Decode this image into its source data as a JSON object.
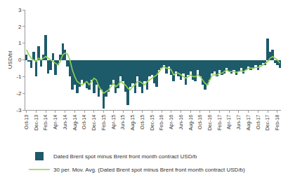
{
  "chart_data": {
    "type": "bar",
    "y_label": "USD/bl",
    "ylim": [
      -3,
      3
    ],
    "yticks": [
      -3,
      -2,
      -1,
      0,
      1,
      2,
      3
    ],
    "grid": false,
    "legend": "bottom",
    "categories": [
      "Oct-13",
      null,
      null,
      null,
      "Dec-13",
      null,
      null,
      null,
      "Feb-14",
      null,
      null,
      null,
      "Apr-14",
      null,
      null,
      null,
      "Jun-14",
      null,
      null,
      null,
      "Aug-14",
      null,
      null,
      null,
      "Oct-14",
      null,
      null,
      null,
      "Dec-14",
      null,
      null,
      null,
      "Feb-15",
      null,
      null,
      null,
      "Apr-15",
      null,
      null,
      null,
      "Jun-15",
      null,
      null,
      null,
      "Aug-15",
      null,
      null,
      null,
      "Oct-15",
      null,
      null,
      null,
      "Dec-15",
      null,
      null,
      null,
      "Feb-16",
      null,
      null,
      null,
      "Apr-16",
      null,
      null,
      null,
      "Jun-16",
      null,
      null,
      null,
      "Aug-16",
      null,
      null,
      null,
      "Oct-16",
      null,
      null,
      null,
      "Dec-16",
      null,
      null,
      null,
      "Feb-17",
      null,
      null,
      null,
      "Apr-17",
      null,
      null,
      null,
      "Jun-17",
      null,
      null,
      null,
      "Aug-17",
      null,
      null,
      null,
      "Oct-17",
      null,
      null,
      null,
      "Dec-17",
      null,
      null,
      null,
      "Feb-18",
      null
    ],
    "series": [
      {
        "name": "Dated Brent spot minus Brent front month contract USD/b",
        "type": "bar",
        "color": "#1d5a6a",
        "values": [
          0.3,
          -0.1,
          -0.5,
          0.5,
          -1.0,
          0.8,
          -0.4,
          0.3,
          1.5,
          -0.8,
          -0.6,
          0.4,
          -0.9,
          -0.3,
          0.3,
          1.0,
          0.6,
          -0.4,
          -1.0,
          -1.8,
          -1.5,
          -2.0,
          -1.6,
          -1.2,
          -1.4,
          -1.7,
          -1.8,
          -1.2,
          -2.0,
          -1.5,
          -2.2,
          -1.8,
          -2.9,
          -2.2,
          -1.9,
          -1.5,
          -1.2,
          -2.0,
          -1.7,
          -1.0,
          -1.3,
          -1.9,
          -2.7,
          -1.6,
          -1.4,
          -2.0,
          -1.0,
          -1.6,
          -2.0,
          -1.3,
          -1.8,
          -1.0,
          -0.9,
          -1.4,
          -1.6,
          -0.6,
          -0.5,
          -0.3,
          -0.8,
          -0.4,
          -0.9,
          -1.3,
          -0.7,
          -1.0,
          -1.2,
          -0.8,
          -1.5,
          -0.9,
          -0.7,
          -1.2,
          -1.3,
          -0.6,
          -1.0,
          -1.5,
          -1.8,
          -1.5,
          -1.2,
          -0.8,
          -0.7,
          -1.0,
          -0.6,
          -0.9,
          -0.8,
          -0.5,
          -0.7,
          -0.8,
          -0.6,
          -0.9,
          -0.7,
          -0.5,
          -0.8,
          -0.6,
          -0.4,
          -0.6,
          -0.5,
          -0.3,
          -0.6,
          -0.3,
          -0.2,
          -0.3,
          1.3,
          0.5,
          0.6,
          -0.2,
          -0.3,
          -0.5
        ]
      },
      {
        "name": "30 per. Mov. Avg. (Dated Brent spot minus Brent front month contract USD/b)",
        "type": "line",
        "color": "#8fd14f",
        "values": [
          0.6,
          0.3,
          0.1,
          0.0,
          -0.1,
          0.1,
          0.0,
          0.1,
          0.2,
          0.1,
          0.0,
          -0.1,
          -0.2,
          -0.3,
          -0.1,
          0.3,
          0.4,
          0.35,
          0.0,
          -0.6,
          -1.0,
          -1.3,
          -1.4,
          -1.5,
          -1.4,
          -1.3,
          -1.5,
          -1.3,
          -1.1,
          -1.2,
          -1.6,
          -1.8,
          -2.0,
          -1.9,
          -1.8,
          -1.6,
          -1.4,
          -1.6,
          -1.5,
          -1.3,
          -1.4,
          -1.5,
          -1.7,
          -1.8,
          -1.6,
          -1.5,
          -1.3,
          -1.3,
          -1.4,
          -1.5,
          -1.3,
          -1.2,
          -1.1,
          -1.0,
          -0.9,
          -0.7,
          -0.5,
          -0.4,
          -0.5,
          -0.5,
          -0.6,
          -0.9,
          -0.8,
          -0.8,
          -0.9,
          -1.0,
          -1.1,
          -1.0,
          -0.9,
          -1.0,
          -1.0,
          -0.9,
          -1.0,
          -1.2,
          -1.4,
          -1.5,
          -1.2,
          -0.9,
          -0.9,
          -0.9,
          -0.8,
          -0.8,
          -0.7,
          -0.6,
          -0.7,
          -0.7,
          -0.7,
          -0.75,
          -0.7,
          -0.65,
          -0.7,
          -0.6,
          -0.5,
          -0.5,
          -0.5,
          -0.45,
          -0.45,
          -0.4,
          -0.3,
          -0.2,
          -0.1,
          0.1,
          0.2,
          0.1,
          0.0,
          -0.2
        ]
      }
    ]
  }
}
